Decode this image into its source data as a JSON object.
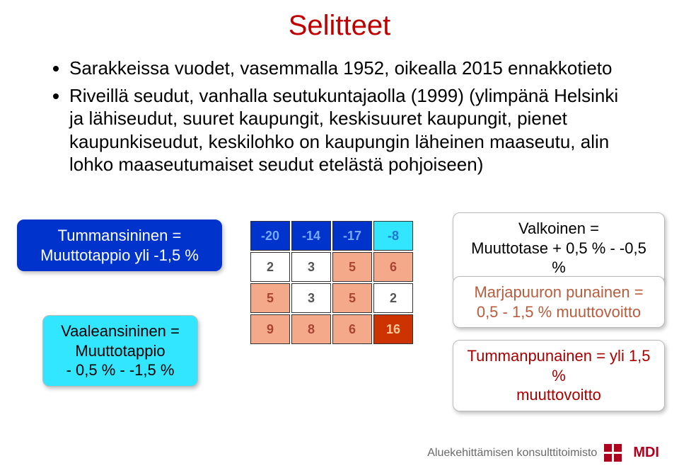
{
  "title": "Selitteet",
  "bullets": [
    "Sarakkeissa vuodet, vasemmalla 1952, oikealla 2015 ennakkotieto",
    "Riveillä seudut, vanhalla seutukuntajaolla (1999) (ylimpänä Helsinki ja lähiseudut, suuret kaupungit, keskisuuret kaupungit, pienet kaupunkiseudut, keskilohko on kaupungin läheinen maaseutu, alin lohko maaseutumaiset seudut etelästä pohjoiseen)"
  ],
  "legend": {
    "darkblue": {
      "l1": "Tummansininen =",
      "l2": "Muuttotappio yli  -1,5 %"
    },
    "lightblue": {
      "l1": "Vaaleansininen =",
      "l2": "Muuttotappio",
      "l3": "- 0,5 % - -1,5 %"
    },
    "white": {
      "l1": "Valkoinen =",
      "l2": "Muuttotase + 0,5 % - -0,5 %"
    },
    "salmon": {
      "l1": "Marjapuuron punainen =",
      "l2": "0,5 - 1,5 % muuttovoitto"
    },
    "darkred": {
      "l1": "Tummanpunainen = yli 1,5 %",
      "l2": "muuttovoitto"
    }
  },
  "heatmap": {
    "values": [
      [
        "-20",
        "-14",
        "-17",
        "-8"
      ],
      [
        "2",
        "3",
        "5",
        "6"
      ],
      [
        "5",
        "3",
        "5",
        "2"
      ],
      [
        "9",
        "8",
        "6",
        "16"
      ]
    ],
    "cell_bg": [
      [
        "#0033cc",
        "#0033cc",
        "#0033cc",
        "#33e6ff"
      ],
      [
        "#ffffff",
        "#ffffff",
        "#f4a98a",
        "#f4a98a"
      ],
      [
        "#f4a98a",
        "#ffffff",
        "#f4a98a",
        "#ffffff"
      ],
      [
        "#f4a98a",
        "#f4a98a",
        "#f4a98a",
        "#cc3300"
      ]
    ],
    "cell_fg": [
      [
        "#77aaff",
        "#77aaff",
        "#77aaff",
        "#2277cc"
      ],
      [
        "#555555",
        "#555555",
        "#a84433",
        "#a84433"
      ],
      [
        "#a84433",
        "#555555",
        "#a84433",
        "#555555"
      ],
      [
        "#a84433",
        "#a84433",
        "#a84433",
        "#ffcc99"
      ]
    ]
  },
  "footer": {
    "text": "Aluekehittämisen konsulttitoimisto",
    "logo_text": "MDI",
    "logo_color": "#b00020"
  }
}
